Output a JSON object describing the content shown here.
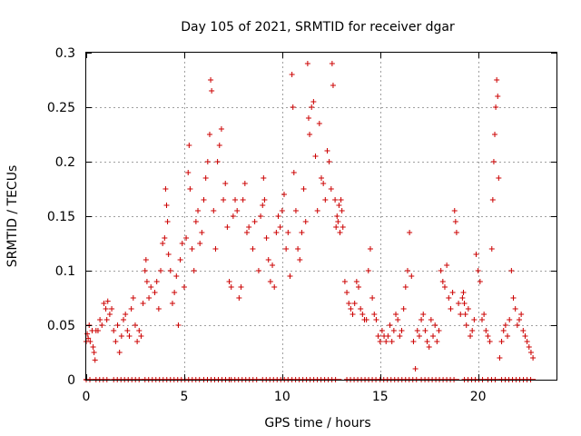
{
  "chart_data": {
    "type": "scatter",
    "title": "Day 105 of 2021, SRMTID for receiver dgar",
    "xlabel": "GPS time / hours",
    "ylabel": "SRMTID / TECUs",
    "xlim": [
      0,
      24
    ],
    "ylim": [
      0,
      0.3
    ],
    "x_ticks": [
      0,
      5,
      10,
      15,
      20
    ],
    "x_tick_labels": [
      "0",
      "5",
      "10",
      "15",
      "20"
    ],
    "y_ticks": [
      0,
      0.05,
      0.1,
      0.15,
      0.2,
      0.25,
      0.3
    ],
    "y_tick_labels": [
      "0",
      "0.05",
      "0.1",
      "0.15",
      "0.2",
      "0.25",
      "0.3"
    ],
    "grid": true,
    "marker": "+",
    "color": "#cc0000",
    "series": [
      {
        "name": "SRMTID",
        "points": [
          [
            0.0,
            0.035
          ],
          [
            0.05,
            0.042
          ],
          [
            0.1,
            0.038
          ],
          [
            0.15,
            0.05
          ],
          [
            0.2,
            0.035
          ],
          [
            0.3,
            0.045
          ],
          [
            0.35,
            0.03
          ],
          [
            0.4,
            0.025
          ],
          [
            0.45,
            0.018
          ],
          [
            0.5,
            0.045
          ],
          [
            0.6,
            0.045
          ],
          [
            0.7,
            0.055
          ],
          [
            0.8,
            0.05
          ],
          [
            0.9,
            0.07
          ],
          [
            1.0,
            0.065
          ],
          [
            1.05,
            0.055
          ],
          [
            1.1,
            0.072
          ],
          [
            1.2,
            0.06
          ],
          [
            1.3,
            0.065
          ],
          [
            1.4,
            0.045
          ],
          [
            1.5,
            0.035
          ],
          [
            1.6,
            0.05
          ],
          [
            1.7,
            0.025
          ],
          [
            1.8,
            0.04
          ],
          [
            1.9,
            0.055
          ],
          [
            2.0,
            0.06
          ],
          [
            2.1,
            0.045
          ],
          [
            2.2,
            0.04
          ],
          [
            2.3,
            0.065
          ],
          [
            2.4,
            0.075
          ],
          [
            2.5,
            0.05
          ],
          [
            2.6,
            0.035
          ],
          [
            2.7,
            0.045
          ],
          [
            2.8,
            0.04
          ],
          [
            2.9,
            0.07
          ],
          [
            3.0,
            0.1
          ],
          [
            3.05,
            0.11
          ],
          [
            3.1,
            0.09
          ],
          [
            3.2,
            0.075
          ],
          [
            3.3,
            0.085
          ],
          [
            3.5,
            0.08
          ],
          [
            3.6,
            0.09
          ],
          [
            3.7,
            0.065
          ],
          [
            3.8,
            0.1
          ],
          [
            3.9,
            0.125
          ],
          [
            4.0,
            0.13
          ],
          [
            4.05,
            0.175
          ],
          [
            4.1,
            0.16
          ],
          [
            4.15,
            0.145
          ],
          [
            4.2,
            0.115
          ],
          [
            4.3,
            0.1
          ],
          [
            4.4,
            0.07
          ],
          [
            4.5,
            0.08
          ],
          [
            4.6,
            0.095
          ],
          [
            4.7,
            0.05
          ],
          [
            4.8,
            0.11
          ],
          [
            4.9,
            0.125
          ],
          [
            5.0,
            0.085
          ],
          [
            5.1,
            0.13
          ],
          [
            5.2,
            0.19
          ],
          [
            5.25,
            0.215
          ],
          [
            5.3,
            0.175
          ],
          [
            5.4,
            0.12
          ],
          [
            5.5,
            0.1
          ],
          [
            5.6,
            0.145
          ],
          [
            5.7,
            0.155
          ],
          [
            5.8,
            0.125
          ],
          [
            5.9,
            0.135
          ],
          [
            6.0,
            0.165
          ],
          [
            6.1,
            0.185
          ],
          [
            6.2,
            0.2
          ],
          [
            6.3,
            0.225
          ],
          [
            6.35,
            0.275
          ],
          [
            6.4,
            0.265
          ],
          [
            6.5,
            0.155
          ],
          [
            6.6,
            0.12
          ],
          [
            6.7,
            0.2
          ],
          [
            6.8,
            0.215
          ],
          [
            6.9,
            0.23
          ],
          [
            7.0,
            0.165
          ],
          [
            7.1,
            0.18
          ],
          [
            7.2,
            0.14
          ],
          [
            7.3,
            0.09
          ],
          [
            7.4,
            0.085
          ],
          [
            7.5,
            0.15
          ],
          [
            7.6,
            0.165
          ],
          [
            7.7,
            0.155
          ],
          [
            7.8,
            0.075
          ],
          [
            7.9,
            0.085
          ],
          [
            8.0,
            0.165
          ],
          [
            8.1,
            0.18
          ],
          [
            8.2,
            0.135
          ],
          [
            8.3,
            0.14
          ],
          [
            8.5,
            0.12
          ],
          [
            8.6,
            0.145
          ],
          [
            8.8,
            0.1
          ],
          [
            8.9,
            0.15
          ],
          [
            9.0,
            0.16
          ],
          [
            9.05,
            0.185
          ],
          [
            9.1,
            0.165
          ],
          [
            9.2,
            0.13
          ],
          [
            9.3,
            0.11
          ],
          [
            9.4,
            0.09
          ],
          [
            9.5,
            0.105
          ],
          [
            9.6,
            0.085
          ],
          [
            9.7,
            0.135
          ],
          [
            9.8,
            0.15
          ],
          [
            9.9,
            0.14
          ],
          [
            10.0,
            0.155
          ],
          [
            10.1,
            0.17
          ],
          [
            10.2,
            0.12
          ],
          [
            10.3,
            0.135
          ],
          [
            10.4,
            0.095
          ],
          [
            10.5,
            0.28
          ],
          [
            10.55,
            0.25
          ],
          [
            10.6,
            0.19
          ],
          [
            10.7,
            0.155
          ],
          [
            10.8,
            0.12
          ],
          [
            10.9,
            0.11
          ],
          [
            11.0,
            0.135
          ],
          [
            11.1,
            0.175
          ],
          [
            11.2,
            0.145
          ],
          [
            11.3,
            0.29
          ],
          [
            11.35,
            0.24
          ],
          [
            11.4,
            0.225
          ],
          [
            11.5,
            0.25
          ],
          [
            11.6,
            0.255
          ],
          [
            11.7,
            0.205
          ],
          [
            11.8,
            0.155
          ],
          [
            11.9,
            0.235
          ],
          [
            12.0,
            0.185
          ],
          [
            12.1,
            0.18
          ],
          [
            12.2,
            0.165
          ],
          [
            12.3,
            0.21
          ],
          [
            12.4,
            0.2
          ],
          [
            12.5,
            0.175
          ],
          [
            12.55,
            0.29
          ],
          [
            12.6,
            0.27
          ],
          [
            12.7,
            0.165
          ],
          [
            12.75,
            0.14
          ],
          [
            12.8,
            0.15
          ],
          [
            12.85,
            0.145
          ],
          [
            12.9,
            0.16
          ],
          [
            12.95,
            0.135
          ],
          [
            13.0,
            0.165
          ],
          [
            13.05,
            0.155
          ],
          [
            13.1,
            0.14
          ],
          [
            13.2,
            0.09
          ],
          [
            13.3,
            0.08
          ],
          [
            13.4,
            0.07
          ],
          [
            13.5,
            0.065
          ],
          [
            13.6,
            0.06
          ],
          [
            13.7,
            0.07
          ],
          [
            13.8,
            0.09
          ],
          [
            13.9,
            0.085
          ],
          [
            14.0,
            0.065
          ],
          [
            14.1,
            0.06
          ],
          [
            14.2,
            0.055
          ],
          [
            14.3,
            0.055
          ],
          [
            14.4,
            0.1
          ],
          [
            14.5,
            0.12
          ],
          [
            14.6,
            0.075
          ],
          [
            14.7,
            0.06
          ],
          [
            14.8,
            0.055
          ],
          [
            14.9,
            0.04
          ],
          [
            15.0,
            0.035
          ],
          [
            15.1,
            0.045
          ],
          [
            15.2,
            0.04
          ],
          [
            15.3,
            0.035
          ],
          [
            15.4,
            0.04
          ],
          [
            15.5,
            0.05
          ],
          [
            15.6,
            0.035
          ],
          [
            15.7,
            0.045
          ],
          [
            15.8,
            0.06
          ],
          [
            15.9,
            0.055
          ],
          [
            16.0,
            0.04
          ],
          [
            16.1,
            0.045
          ],
          [
            16.2,
            0.065
          ],
          [
            16.3,
            0.085
          ],
          [
            16.4,
            0.1
          ],
          [
            16.5,
            0.135
          ],
          [
            16.6,
            0.095
          ],
          [
            16.7,
            0.035
          ],
          [
            16.8,
            0.01
          ],
          [
            16.9,
            0.045
          ],
          [
            17.0,
            0.04
          ],
          [
            17.1,
            0.055
          ],
          [
            17.2,
            0.06
          ],
          [
            17.3,
            0.045
          ],
          [
            17.4,
            0.035
          ],
          [
            17.5,
            0.03
          ],
          [
            17.6,
            0.055
          ],
          [
            17.7,
            0.04
          ],
          [
            17.8,
            0.05
          ],
          [
            17.9,
            0.035
          ],
          [
            18.0,
            0.045
          ],
          [
            18.1,
            0.1
          ],
          [
            18.2,
            0.09
          ],
          [
            18.3,
            0.085
          ],
          [
            18.4,
            0.105
          ],
          [
            18.5,
            0.075
          ],
          [
            18.6,
            0.065
          ],
          [
            18.7,
            0.08
          ],
          [
            18.8,
            0.155
          ],
          [
            18.85,
            0.145
          ],
          [
            18.9,
            0.135
          ],
          [
            19.0,
            0.07
          ],
          [
            19.1,
            0.06
          ],
          [
            19.2,
            0.075
          ],
          [
            19.25,
            0.08
          ],
          [
            19.3,
            0.07
          ],
          [
            19.35,
            0.06
          ],
          [
            19.4,
            0.05
          ],
          [
            19.5,
            0.065
          ],
          [
            19.6,
            0.04
          ],
          [
            19.7,
            0.045
          ],
          [
            19.8,
            0.055
          ],
          [
            19.9,
            0.115
          ],
          [
            20.0,
            0.1
          ],
          [
            20.1,
            0.09
          ],
          [
            20.2,
            0.055
          ],
          [
            20.3,
            0.06
          ],
          [
            20.4,
            0.045
          ],
          [
            20.5,
            0.04
          ],
          [
            20.6,
            0.035
          ],
          [
            20.7,
            0.12
          ],
          [
            20.75,
            0.165
          ],
          [
            20.8,
            0.2
          ],
          [
            20.85,
            0.225
          ],
          [
            20.9,
            0.25
          ],
          [
            20.95,
            0.275
          ],
          [
            21.0,
            0.26
          ],
          [
            21.05,
            0.185
          ],
          [
            21.1,
            0.02
          ],
          [
            21.2,
            0.035
          ],
          [
            21.3,
            0.045
          ],
          [
            21.4,
            0.05
          ],
          [
            21.5,
            0.04
          ],
          [
            21.6,
            0.055
          ],
          [
            21.7,
            0.1
          ],
          [
            21.8,
            0.075
          ],
          [
            21.9,
            0.065
          ],
          [
            22.0,
            0.05
          ],
          [
            22.1,
            0.055
          ],
          [
            22.2,
            0.06
          ],
          [
            22.3,
            0.045
          ],
          [
            22.4,
            0.04
          ],
          [
            22.5,
            0.035
          ],
          [
            22.6,
            0.03
          ],
          [
            22.7,
            0.025
          ],
          [
            22.8,
            0.02
          ]
        ]
      }
    ],
    "zero_band": [
      [
        0.0,
        0.3
      ],
      [
        0.5,
        1.1
      ],
      [
        1.4,
        2.8
      ],
      [
        3.0,
        5.8
      ],
      [
        6.0,
        7.3
      ],
      [
        7.4,
        8.8
      ],
      [
        9.0,
        10.4
      ],
      [
        10.5,
        12.9
      ],
      [
        13.3,
        14.9
      ],
      [
        15.0,
        16.9
      ],
      [
        17.1,
        18.9
      ],
      [
        19.3,
        20.3
      ],
      [
        20.5,
        21.0
      ],
      [
        21.2,
        22.8
      ]
    ]
  }
}
